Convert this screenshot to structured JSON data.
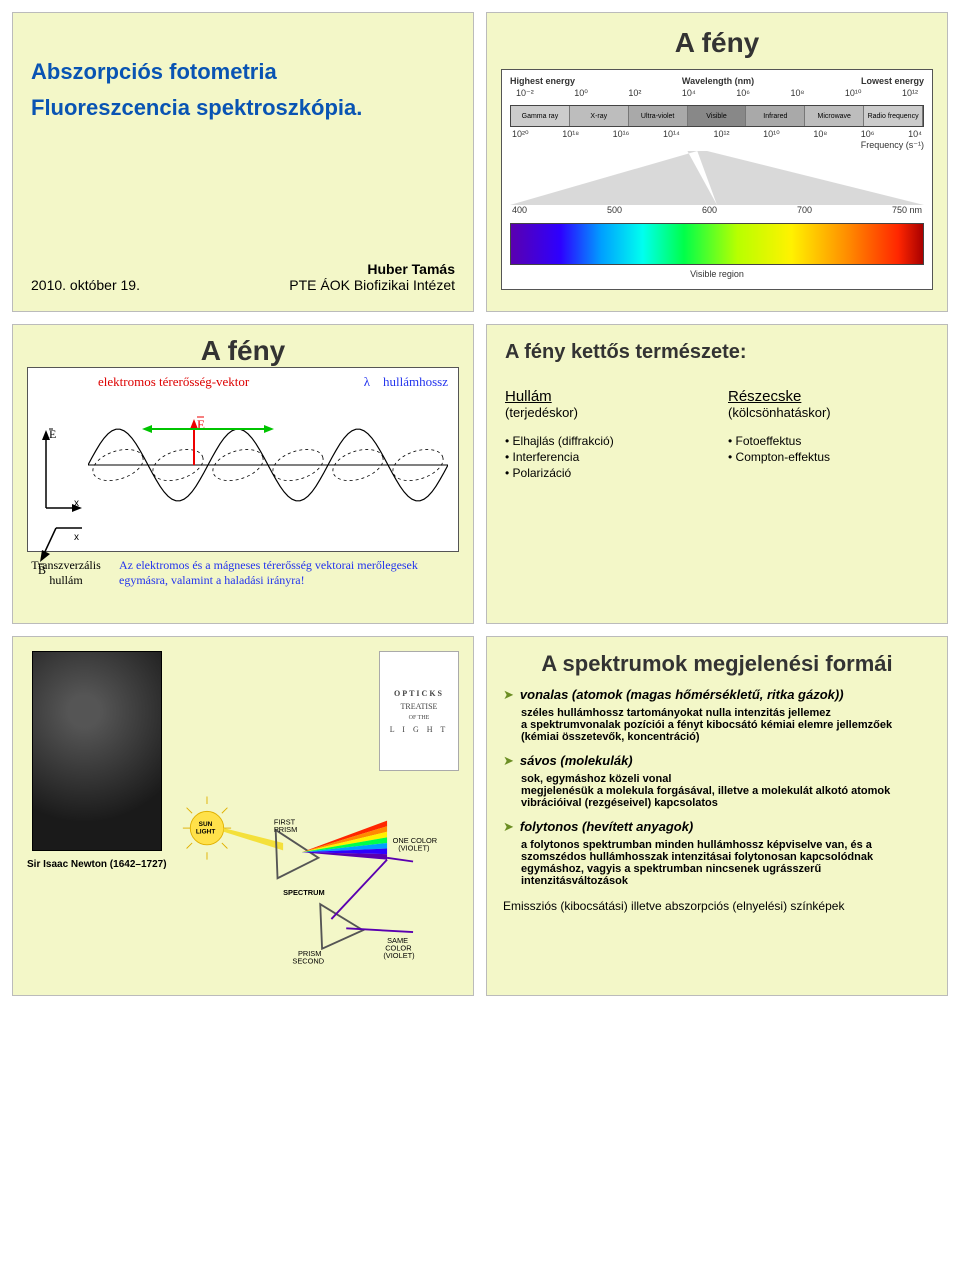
{
  "page": {
    "bg": "#ffffff",
    "slide_bg": "#f3f7c8"
  },
  "slide1": {
    "title_line1": "Abszorpciós fotometria",
    "title_line2": "Fluoreszcencia spektroszkópia.",
    "date": "2010. október 19.",
    "author": "Huber Tamás",
    "affiliation": "PTE ÁOK Biofizikai Intézet",
    "title_color": "#0954b3",
    "title_fontsize": 22
  },
  "slide2": {
    "title": "A fény",
    "title_fontsize": 28,
    "top_left_label": "Highest energy",
    "top_right_label": "Lowest energy",
    "top_center_label": "Wavelength (nm)",
    "wavelength_ticks": [
      "10⁻²",
      "10⁰",
      "10²",
      "10⁴",
      "10⁶",
      "10⁸",
      "10¹⁰",
      "10¹²"
    ],
    "em_regions": [
      {
        "name": "Gamma ray",
        "color": "#cccccc"
      },
      {
        "name": "X-ray",
        "color": "#bdbdbd"
      },
      {
        "name": "Ultra-violet",
        "color": "#a9a9a9"
      },
      {
        "name": "Visible",
        "color": "#888888"
      },
      {
        "name": "Infrared",
        "color": "#a9a9a9"
      },
      {
        "name": "Microwave",
        "color": "#bdbdbd"
      },
      {
        "name": "Radio frequency",
        "color": "#cccccc"
      }
    ],
    "freq_ticks": [
      "10²⁰",
      "10¹⁸",
      "10¹⁶",
      "10¹⁴",
      "10¹²",
      "10¹⁰",
      "10⁸",
      "10⁶",
      "10⁴"
    ],
    "freq_label": "Frequency (s⁻¹)",
    "visible_scale": [
      "400",
      "500",
      "600",
      "700",
      "750 nm"
    ],
    "visible_label": "Visible region"
  },
  "slide3": {
    "title": "A fény",
    "title_fontsize": 28,
    "vec_label": "elektromos térerősség-vektor",
    "lambda_label": "hullámhossz",
    "lambda_symbol": "λ",
    "E_label": "E",
    "B_label": "B",
    "x_label": "x",
    "caption_lbl": "Transzverzális hullám",
    "caption_text": "Az elektromos és a mágneses térerősség vektorai merőlegesek egymásra, valamint a haladási irányra!",
    "vec_color": "#dd0000",
    "caption_color": "#2233ee",
    "wave": {
      "type": "line",
      "x_range": [
        0,
        720
      ],
      "amp_E": 36,
      "amp_B": 28,
      "periods": 3,
      "color_E": "#000000",
      "color_B": "#000000",
      "green_line_color": "#00c400",
      "red_line_color": "#ee0000",
      "dash": "3 3"
    }
  },
  "slide4": {
    "title": "A fény kettős természete:",
    "title_fontsize": 20,
    "left_head": "Hullám",
    "left_sub": "(terjedéskor)",
    "left_items": [
      "Elhajlás (diffrakció)",
      "Interferencia",
      "Polarizáció"
    ],
    "right_head": "Részecske",
    "right_sub": "(kölcsönhatáskor)",
    "right_items": [
      "Fotoeffektus",
      "Compton-effektus"
    ]
  },
  "slide5": {
    "caption": "Sir Isaac Newton (1642–1727)",
    "caption_fontsize": 10,
    "book_title": "OPTICKS",
    "book_sub": "TREATISE",
    "book_of": "OF THE",
    "book_light": "L I G H T",
    "diagram": {
      "labels": {
        "sun": "SUN LIGHT",
        "first_prism": "FIRST PRISM",
        "spectrum": "SPECTRUM",
        "second_prism": "SECOND PRISM",
        "one_color": "ONE COLOR",
        "violet": "(VIOLET)",
        "same_color": "SAME COLOR"
      },
      "sun_color": "#ffe14a",
      "beam_color": "#f4e03a",
      "prism_stroke": "#555555",
      "label_fontsize": 8,
      "spectrum_colors": [
        "#ff2600",
        "#ff8a00",
        "#fff200",
        "#00ff4a",
        "#00a0ff",
        "#2d00ff",
        "#5a00b0"
      ]
    }
  },
  "slide6": {
    "title": "A spektrumok megjelenési formái",
    "title_fontsize": 22,
    "item1_head": "vonalas (atomok (magas hőmérsékletű, ritka gázok))",
    "item1_l1": "széles hullámhossz tartományokat nulla intenzitás jellemez",
    "item1_l2": "a spektrumvonalak pozíciói a fényt kibocsátó kémiai elemre jellemzőek (kémiai összetevők, koncentráció)",
    "item2_head": "sávos (molekulák)",
    "item2_l1": "sok, egymáshoz közeli vonal",
    "item2_l2": "megjelenésük a molekula forgásával, illetve a molekulát alkotó atomok vibrációival (rezgéseivel) kapcsolatos",
    "item3_head": "folytonos (hevített anyagok)",
    "item3_l1": "a folytonos spektrumban minden hullámhossz képviselve van, és a szomszédos hullámhosszak intenzitásai folytonosan kapcsolódnak egymáshoz, vagyis a spektrumban nincsenek ugrásszerű intenzitásváltozások",
    "footer": "Emissziós (kibocsátási) illetve abszorpciós (elnyelési) színképek",
    "arrow_color": "#6b8e23"
  }
}
